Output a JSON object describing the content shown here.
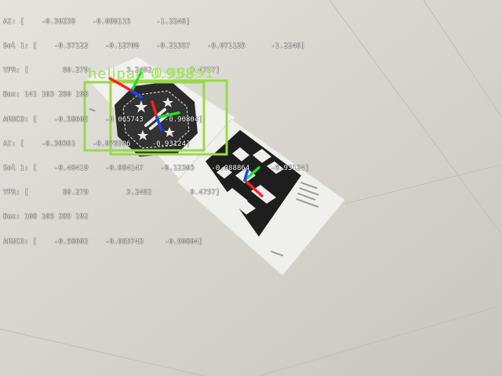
{
  "overlay": {
    "lines": [
      "AI: [    -0.39239    -0.099115      -1.2246]",
      "Sol 1: [    -0.57122    -0.12709    -0.21357    -0.071135      -1.2246]",
      "YPR: [        60.279         3.2492         0.4757]",
      "Box: 141 103 260 198",
      "ARUCO: [    -0.58602    -0.065743     -0.90804]",
      "AI: [    -0.30361    -0.076506     -0.93124]",
      "Sol 1: [    -0.48419    -0.064147    -0.12303    -0.088864     -0.93124]",
      "YPR: [        60.279         3.2492         0.4757]",
      "Box: 108 105 289 192",
      "ARUCO: [    -0.58602    -0.065743     -0.90804]"
    ]
  },
  "detections": [
    {
      "label": "helipad 0.958"
    },
    {
      "label": "0.98491"
    }
  ],
  "colors": {
    "box": "#9ad84a",
    "axis_x": "#ff2020",
    "axis_y": "#20e020",
    "axis_z": "#2040ff",
    "floor": "#d8d6cf"
  },
  "icons": [
    "helipad-marker",
    "aruco-marker",
    "pose-axes"
  ]
}
